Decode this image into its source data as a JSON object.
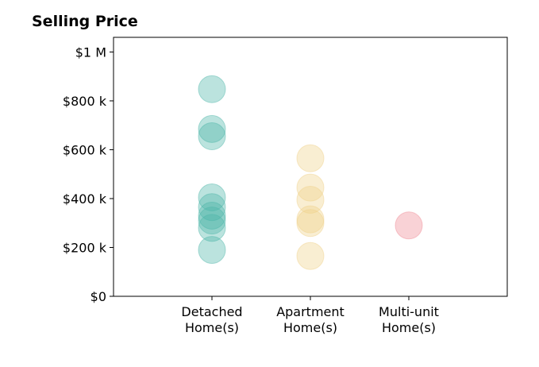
{
  "chart_data": {
    "type": "scatter",
    "title": "Selling Price",
    "xlabel": "",
    "ylabel": "",
    "categories": [
      {
        "line1": "Detached",
        "line2": "Home(s)"
      },
      {
        "line1": "Apartment",
        "line2": "Home(s)"
      },
      {
        "line1": "Multi-unit",
        "line2": "Home(s)"
      }
    ],
    "ylim": [
      0,
      1060000
    ],
    "yticks": [
      {
        "value": 0,
        "label": "$0"
      },
      {
        "value": 200000,
        "label": "$200 k"
      },
      {
        "value": 400000,
        "label": "$400 k"
      },
      {
        "value": 600000,
        "label": "$600 k"
      },
      {
        "value": 800000,
        "label": "$800 k"
      },
      {
        "value": 1000000,
        "label": "$1 M"
      }
    ],
    "grid": false,
    "series": [
      {
        "category": 0,
        "color": "#4db6a9",
        "values": [
          848000,
          685000,
          655000,
          405000,
          365000,
          330000,
          310000,
          280000,
          190000
        ]
      },
      {
        "category": 1,
        "color": "#f0d18a",
        "values": [
          565000,
          445000,
          395000,
          315000,
          300000,
          165000
        ]
      },
      {
        "category": 2,
        "color": "#f08a94",
        "values": [
          290000
        ]
      }
    ]
  }
}
